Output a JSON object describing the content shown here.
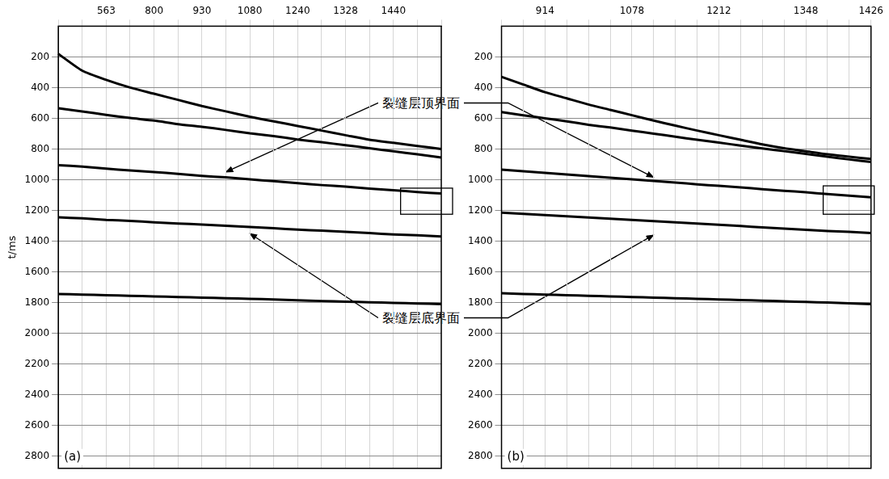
{
  "chart_data": [
    {
      "type": "line",
      "panel": "(a)",
      "ylabel": "t/ms",
      "categories": [
        null,
        null,
        "563",
        null,
        "800",
        null,
        "930",
        null,
        "1080",
        null,
        "1240",
        null,
        "1328",
        null,
        "1440",
        null,
        null
      ],
      "series": [
        {
          "color": "#000000",
          "values": [
            180,
            290,
            350,
            400,
            440,
            480,
            520,
            555,
            590,
            620,
            650,
            680,
            710,
            740,
            760,
            780,
            800
          ]
        },
        {
          "color": "#000000",
          "values": [
            535,
            555,
            578,
            598,
            615,
            638,
            655,
            676,
            698,
            716,
            738,
            756,
            775,
            795,
            815,
            835,
            855
          ]
        },
        {
          "color": "#000000",
          "values": [
            905,
            915,
            928,
            940,
            950,
            962,
            975,
            985,
            998,
            1010,
            1022,
            1035,
            1045,
            1058,
            1068,
            1080,
            1090
          ]
        },
        {
          "color": "#000000",
          "values": [
            1245,
            1252,
            1262,
            1268,
            1278,
            1285,
            1292,
            1300,
            1308,
            1316,
            1325,
            1332,
            1340,
            1348,
            1356,
            1362,
            1370
          ]
        },
        {
          "color": "#000000",
          "values": [
            1745,
            1748,
            1752,
            1756,
            1760,
            1764,
            1768,
            1772,
            1776,
            1780,
            1785,
            1790,
            1794,
            1798,
            1802,
            1806,
            1810
          ]
        }
      ],
      "ylim": [
        0,
        2880
      ],
      "yticks": [
        200,
        400,
        600,
        800,
        1000,
        1200,
        1400,
        1600,
        1800,
        2000,
        2200,
        2400,
        2600,
        2800
      ],
      "grid": true,
      "boxes": [
        {
          "x": 14.3,
          "t": [
            1055,
            1225
          ]
        }
      ]
    },
    {
      "type": "line",
      "panel": "(b)",
      "categories": [
        null,
        null,
        "914",
        null,
        null,
        null,
        "1078",
        null,
        null,
        null,
        "1212",
        null,
        null,
        null,
        "1348",
        null,
        null,
        "1426"
      ],
      "series": [
        {
          "color": "#000000",
          "values": [
            330,
            380,
            430,
            470,
            510,
            545,
            580,
            615,
            648,
            680,
            710,
            740,
            770,
            795,
            815,
            835,
            850,
            865
          ]
        },
        {
          "color": "#000000",
          "values": [
            560,
            580,
            600,
            620,
            642,
            660,
            680,
            700,
            720,
            740,
            758,
            778,
            796,
            814,
            832,
            850,
            868,
            885
          ]
        },
        {
          "color": "#000000",
          "values": [
            935,
            945,
            955,
            966,
            976,
            987,
            998,
            1008,
            1018,
            1030,
            1040,
            1050,
            1062,
            1072,
            1082,
            1094,
            1104,
            1115
          ]
        },
        {
          "color": "#000000",
          "values": [
            1215,
            1222,
            1230,
            1238,
            1246,
            1254,
            1262,
            1270,
            1278,
            1286,
            1294,
            1302,
            1310,
            1318,
            1326,
            1334,
            1340,
            1348
          ]
        },
        {
          "color": "#000000",
          "values": [
            1740,
            1744,
            1748,
            1752,
            1756,
            1760,
            1764,
            1768,
            1772,
            1776,
            1780,
            1784,
            1788,
            1792,
            1796,
            1800,
            1805,
            1810
          ]
        }
      ],
      "ylim": [
        0,
        2880
      ],
      "yticks": [
        200,
        400,
        600,
        800,
        1000,
        1200,
        1400,
        1600,
        1800,
        2000,
        2200,
        2400,
        2600,
        2800
      ],
      "grid": true,
      "boxes": [
        {
          "x": 14.8,
          "t": [
            1040,
            1225
          ]
        }
      ]
    }
  ],
  "annotations": [
    {
      "text": "裂缝层顶界面",
      "targets": [
        {
          "panel": 0,
          "x": 7,
          "t": 950
        },
        {
          "panel": 1,
          "x": 7,
          "t": 985
        }
      ]
    },
    {
      "text": "裂缝层底界面",
      "targets": [
        {
          "panel": 0,
          "x": 8,
          "t": 1350
        },
        {
          "panel": 1,
          "x": 7,
          "t": 1360
        }
      ]
    }
  ]
}
